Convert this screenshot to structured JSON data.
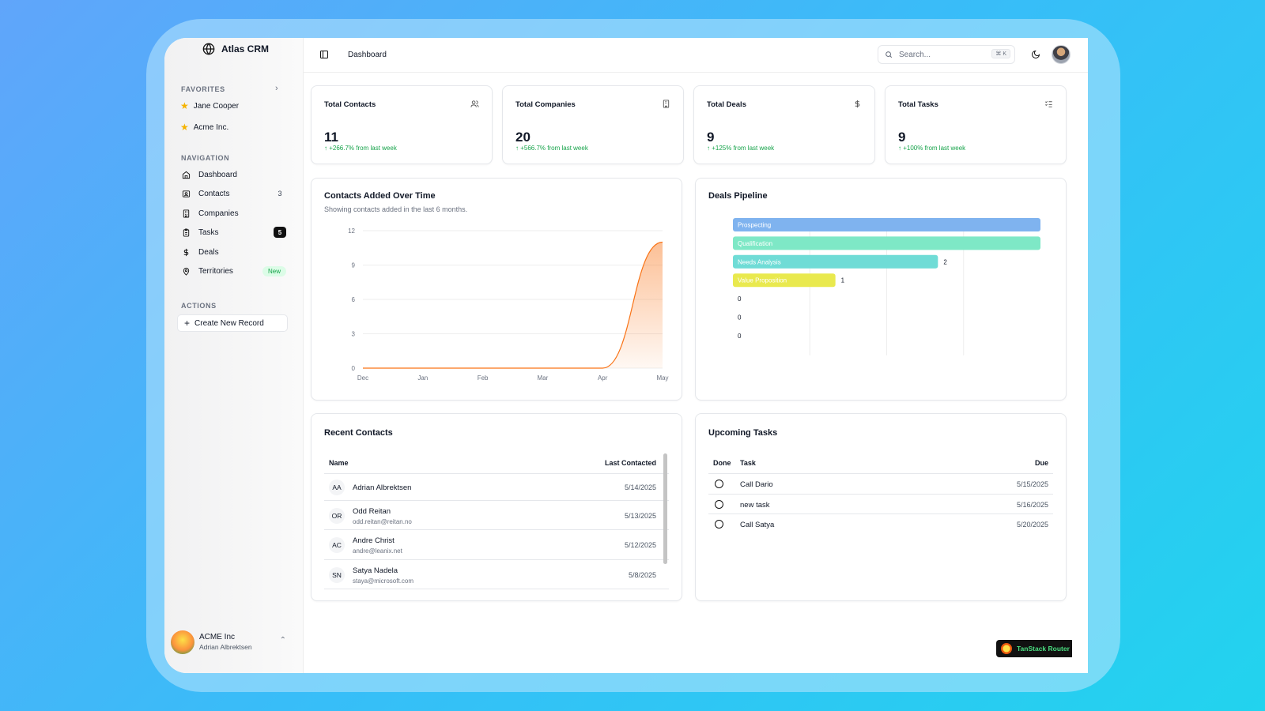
{
  "brand": {
    "name": "Atlas CRM"
  },
  "sidebar": {
    "favorites_label": "FAVORITES",
    "favorites": [
      {
        "label": "Jane Cooper"
      },
      {
        "label": "Acme Inc."
      }
    ],
    "navigation_label": "NAVIGATION",
    "nav": [
      {
        "label": "Dashboard"
      },
      {
        "label": "Contacts",
        "badge": "3"
      },
      {
        "label": "Companies"
      },
      {
        "label": "Tasks",
        "badge": "5"
      },
      {
        "label": "Deals"
      },
      {
        "label": "Territories",
        "badge": "New"
      }
    ],
    "actions_label": "ACTIONS",
    "create_label": "Create New Record",
    "user": {
      "org": "ACME Inc",
      "name": "Adrian Albrektsen"
    }
  },
  "header": {
    "title": "Dashboard",
    "search_placeholder": "Search...",
    "search_shortcut": "⌘ K"
  },
  "stats": [
    {
      "title": "Total Contacts",
      "value": "11",
      "delta": "↑ +266.7% from last week",
      "icon": "users-icon"
    },
    {
      "title": "Total Companies",
      "value": "20",
      "delta": "↑ +566.7% from last week",
      "icon": "building-icon"
    },
    {
      "title": "Total Deals",
      "value": "9",
      "delta": "↑ +125% from last week",
      "icon": "dollar-icon"
    },
    {
      "title": "Total Tasks",
      "value": "9",
      "delta": "↑ +100% from last week",
      "icon": "list-checks-icon"
    }
  ],
  "contacts_chart": {
    "title": "Contacts Added Over Time",
    "subtitle": "Showing contacts added in the last 6 months."
  },
  "pipeline": {
    "title": "Deals Pipeline"
  },
  "chart_data": [
    {
      "type": "area",
      "title": "Contacts Added Over Time",
      "categories": [
        "Dec",
        "Jan",
        "Feb",
        "Mar",
        "Apr",
        "May"
      ],
      "values": [
        0,
        0,
        0,
        0,
        0,
        11
      ],
      "yticks": [
        "0",
        "3",
        "6",
        "9",
        "12"
      ],
      "ylim": [
        0,
        12
      ],
      "color": "#f97316",
      "grid": true
    },
    {
      "type": "bar",
      "title": "Deals Pipeline",
      "orientation": "horizontal",
      "categories": [
        "Prospecting",
        "Qualification",
        "Needs Analysis",
        "Value Proposition",
        "",
        "",
        ""
      ],
      "values": [
        3,
        3,
        2,
        1,
        0,
        0,
        0
      ],
      "value_labels": [
        "",
        "",
        "2",
        "1",
        "0",
        "0",
        "0"
      ],
      "colors": [
        "#7fb3ef",
        "#7ee8c6",
        "#6fdcd6",
        "#e9e94e",
        "#e5e7eb",
        "#e5e7eb",
        "#e5e7eb"
      ],
      "xlim": [
        0,
        3
      ]
    }
  ],
  "recent_contacts": {
    "title": "Recent Contacts",
    "col_name": "Name",
    "col_last": "Last Contacted",
    "rows": [
      {
        "initials": "AA",
        "name": "Adrian Albrektsen",
        "email": "",
        "date": "5/14/2025"
      },
      {
        "initials": "OR",
        "name": "Odd Reitan",
        "email": "odd.reitan@reitan.no",
        "date": "5/13/2025"
      },
      {
        "initials": "AC",
        "name": "Andre Christ",
        "email": "andre@leanix.net",
        "date": "5/12/2025"
      },
      {
        "initials": "SN",
        "name": "Satya Nadela",
        "email": "staya@microsoft.com",
        "date": "5/8/2025"
      }
    ]
  },
  "tasks": {
    "title": "Upcoming Tasks",
    "col_done": "Done",
    "col_task": "Task",
    "col_due": "Due",
    "rows": [
      {
        "name": "Call Dario",
        "due": "5/15/2025"
      },
      {
        "name": "new task",
        "due": "5/16/2025"
      },
      {
        "name": "Call Satya",
        "due": "5/20/2025"
      }
    ]
  },
  "devtools": {
    "label": "TanStack Router"
  }
}
